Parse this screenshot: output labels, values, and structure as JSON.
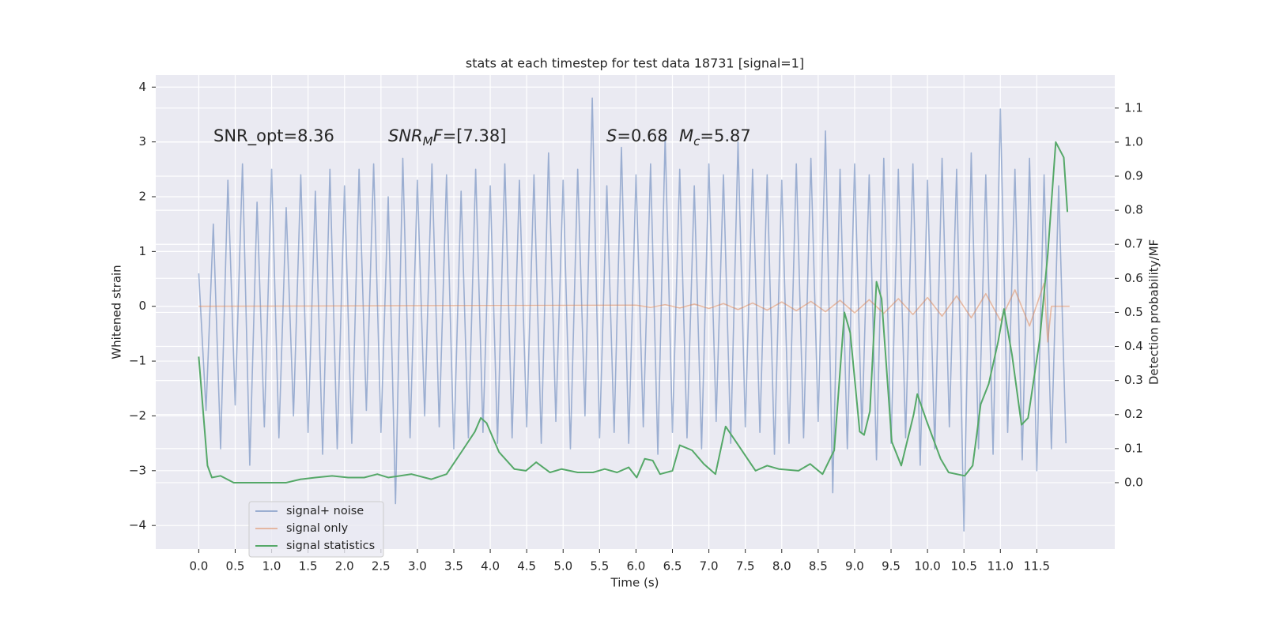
{
  "chart_data": {
    "type": "line",
    "title": "stats at each timestep for test data 18731 [signal=1]",
    "x_label": "Time (s)",
    "y_label": "Whitened strain",
    "y2_label": "Detection probability/MF",
    "xlim": [
      -0.59,
      12.57
    ],
    "ylim": [
      -4.43,
      4.22
    ],
    "y2lim": [
      -0.195,
      1.197
    ],
    "xticks": [
      {
        "value": 0,
        "label": "0.0"
      },
      0.5,
      {
        "value": 1,
        "label": "1.0"
      },
      1.5,
      {
        "value": 2,
        "label": "2.0"
      },
      2.5,
      {
        "value": 3,
        "label": "3.0"
      },
      3.5,
      {
        "value": 4,
        "label": "4.0"
      },
      4.5,
      {
        "value": 5,
        "label": "5.0"
      },
      5.5,
      {
        "value": 6,
        "label": "6.0"
      },
      6.5,
      {
        "value": 7,
        "label": "7.0"
      },
      7.5,
      {
        "value": 8,
        "label": "8.0"
      },
      8.5,
      {
        "value": 9,
        "label": "9.0"
      },
      9.5,
      {
        "value": 10,
        "label": "10.0"
      },
      10.5,
      {
        "value": 11,
        "label": "11.0"
      },
      11.5
    ],
    "yticks": [
      {
        "value": -4,
        "label": "−4"
      },
      {
        "value": -3,
        "label": "−3"
      },
      {
        "value": -2,
        "label": "−2"
      },
      {
        "value": -1,
        "label": "−1"
      },
      0,
      1,
      2,
      3,
      4
    ],
    "y2ticks": [
      {
        "value": 0,
        "label": "0.0"
      },
      0.1,
      0.2,
      0.3,
      0.4,
      0.5,
      0.6,
      0.7,
      0.8,
      0.9,
      {
        "value": 1,
        "label": "1.0"
      },
      1.1
    ],
    "grid": true,
    "legend": "lower left",
    "annotations": [
      [
        {
          "text": "SNR_opt=8.36"
        }
      ],
      [
        {
          "text": "SNR",
          "italic": true
        },
        {
          "text": "M",
          "italic": true,
          "sub": true
        },
        {
          "text": "F",
          "italic": true
        },
        {
          "text": "=[7.38]"
        }
      ],
      [
        {
          "text": "S",
          "italic": true
        },
        {
          "text": "=0.68"
        }
      ],
      [
        {
          "text": "M",
          "italic": true
        },
        {
          "text": "c",
          "italic": true,
          "sub": true
        },
        {
          "text": "=5.87"
        }
      ]
    ],
    "series": [
      {
        "name": "signal+ noise",
        "color": "#4c72b0",
        "opacity": 0.5,
        "x": [
          0,
          0.1,
          0.2,
          0.3,
          0.4,
          0.5,
          0.6,
          0.7,
          0.8,
          0.9,
          1,
          1.1,
          1.2,
          1.3,
          1.4,
          1.5,
          1.6,
          1.7,
          1.8,
          1.9,
          2,
          2.1,
          2.2,
          2.3,
          2.4,
          2.5,
          2.6,
          2.7,
          2.8,
          2.9,
          3,
          3.1,
          3.2,
          3.3,
          3.4,
          3.5,
          3.6,
          3.7,
          3.8,
          3.9,
          4,
          4.1,
          4.2,
          4.3,
          4.4,
          4.5,
          4.6,
          4.7,
          4.8,
          4.9,
          5,
          5.1,
          5.2,
          5.3,
          5.4,
          5.5,
          5.6,
          5.7,
          5.8,
          5.9,
          6,
          6.1,
          6.2,
          6.3,
          6.4,
          6.5,
          6.6,
          6.7,
          6.8,
          6.9,
          7,
          7.1,
          7.2,
          7.3,
          7.4,
          7.5,
          7.6,
          7.7,
          7.8,
          7.9,
          8,
          8.1,
          8.2,
          8.3,
          8.4,
          8.5,
          8.6,
          8.7,
          8.8,
          8.9,
          9,
          9.1,
          9.2,
          9.3,
          9.4,
          9.5,
          9.6,
          9.7,
          9.8,
          9.9,
          10,
          10.1,
          10.2,
          10.3,
          10.4,
          10.5,
          10.6,
          10.7,
          10.8,
          10.9,
          11,
          11.1,
          11.2,
          11.3,
          11.4,
          11.5,
          11.6,
          11.7,
          11.8,
          11.9
        ],
        "values": [
          0.6,
          -1.9,
          1.5,
          -2.6,
          2.3,
          -1.8,
          2.6,
          -2.9,
          1.9,
          -2.2,
          2.5,
          -2.4,
          1.8,
          -2.0,
          2.4,
          -2.3,
          2.1,
          -2.7,
          2.5,
          -2.6,
          2.2,
          -2.5,
          2.5,
          -1.9,
          2.6,
          -2.3,
          2.0,
          -3.6,
          2.7,
          -2.4,
          2.3,
          -2.0,
          2.6,
          -2.2,
          2.4,
          -2.6,
          2.1,
          -2.4,
          2.5,
          -2.3,
          2.2,
          -2.5,
          2.6,
          -2.4,
          2.3,
          -2.2,
          2.4,
          -2.5,
          2.8,
          -2.1,
          2.3,
          -2.6,
          2.5,
          -2.0,
          3.8,
          -2.4,
          2.2,
          -2.3,
          2.9,
          -2.5,
          2.4,
          -2.2,
          2.6,
          -2.7,
          3.1,
          -2.3,
          2.5,
          -2.4,
          2.2,
          -2.6,
          2.6,
          -2.1,
          2.4,
          -2.5,
          3.0,
          -2.2,
          2.5,
          -2.3,
          2.4,
          -2.7,
          2.3,
          -2.5,
          2.6,
          -2.4,
          2.7,
          -2.1,
          3.2,
          -3.4,
          2.5,
          -2.6,
          2.6,
          -2.3,
          2.4,
          -2.8,
          2.7,
          -2.5,
          2.5,
          -2.4,
          2.6,
          -2.9,
          2.3,
          -2.6,
          2.7,
          -2.2,
          2.5,
          -4.1,
          2.8,
          -2.6,
          2.4,
          -2.7,
          3.6,
          -2.3,
          2.5,
          -2.8,
          2.7,
          -3.0,
          2.4,
          -2.6,
          2.2,
          -2.5
        ]
      },
      {
        "name": "signal only",
        "color": "#dd8452",
        "opacity": 0.5,
        "x": [
          0,
          6.0,
          6.2,
          6.4,
          6.6,
          6.8,
          7.0,
          7.2,
          7.4,
          7.6,
          7.8,
          8.0,
          8.2,
          8.4,
          8.6,
          8.8,
          9.0,
          9.2,
          9.4,
          9.6,
          9.8,
          10.0,
          10.2,
          10.4,
          10.6,
          10.8,
          11.0,
          11.2,
          11.4,
          11.6,
          11.65,
          11.7,
          11.95
        ],
        "values": [
          0,
          0.02,
          -0.02,
          0.03,
          -0.03,
          0.04,
          -0.04,
          0.05,
          -0.06,
          0.06,
          -0.07,
          0.08,
          -0.08,
          0.09,
          -0.1,
          0.11,
          -0.12,
          0.12,
          -0.13,
          0.14,
          -0.15,
          0.16,
          -0.18,
          0.19,
          -0.21,
          0.23,
          -0.26,
          0.3,
          -0.36,
          0.42,
          -0.65,
          0,
          0
        ]
      },
      {
        "name": "signal statistics",
        "color": "#55a868",
        "axis": "y2",
        "x": [
          0.0,
          0.12,
          0.18,
          0.3,
          0.48,
          0.86,
          1.2,
          1.4,
          1.6,
          1.83,
          2.05,
          2.27,
          2.45,
          2.6,
          2.92,
          3.19,
          3.4,
          3.62,
          3.79,
          3.87,
          3.95,
          4.12,
          4.33,
          4.49,
          4.63,
          4.82,
          4.98,
          5.2,
          5.41,
          5.57,
          5.74,
          5.9,
          6.01,
          6.12,
          6.23,
          6.33,
          6.5,
          6.6,
          6.77,
          6.93,
          7.09,
          7.23,
          7.42,
          7.64,
          7.8,
          7.96,
          8.23,
          8.39,
          8.56,
          8.72,
          8.86,
          8.94,
          9.07,
          9.13,
          9.21,
          9.3,
          9.37,
          9.51,
          9.64,
          9.81,
          9.86,
          9.99,
          10.18,
          10.29,
          10.51,
          10.62,
          10.73,
          10.84,
          10.97,
          11.05,
          11.16,
          11.29,
          11.38,
          11.54,
          11.65,
          11.76,
          11.87,
          11.92
        ],
        "values": [
          0.37,
          0.05,
          0.015,
          0.02,
          0.0,
          0.0,
          0.0,
          0.01,
          0.015,
          0.02,
          0.015,
          0.015,
          0.025,
          0.015,
          0.025,
          0.01,
          0.025,
          0.095,
          0.15,
          0.19,
          0.175,
          0.09,
          0.04,
          0.035,
          0.06,
          0.03,
          0.04,
          0.03,
          0.03,
          0.04,
          0.03,
          0.045,
          0.015,
          0.07,
          0.065,
          0.025,
          0.035,
          0.11,
          0.095,
          0.055,
          0.025,
          0.165,
          0.105,
          0.035,
          0.05,
          0.04,
          0.035,
          0.055,
          0.025,
          0.095,
          0.5,
          0.44,
          0.15,
          0.14,
          0.21,
          0.59,
          0.54,
          0.12,
          0.05,
          0.2,
          0.26,
          0.18,
          0.07,
          0.03,
          0.02,
          0.05,
          0.23,
          0.29,
          0.415,
          0.51,
          0.375,
          0.17,
          0.19,
          0.42,
          0.67,
          1.0,
          0.955,
          0.795
        ]
      }
    ]
  }
}
